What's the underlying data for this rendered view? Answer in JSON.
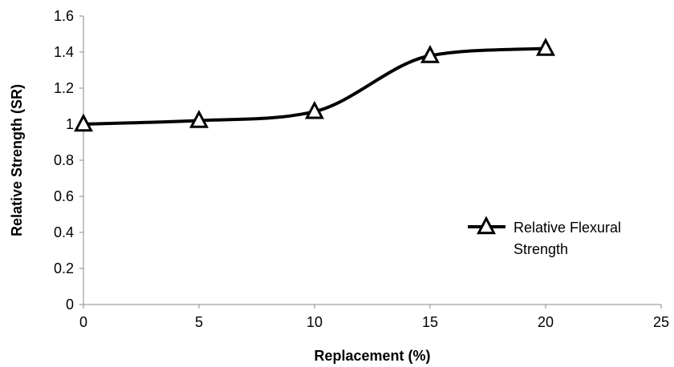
{
  "chart_data": {
    "type": "line",
    "title": "",
    "xlabel": "Replacement (%)",
    "ylabel": "Relative Strength (SR)",
    "xlim": [
      0,
      25
    ],
    "ylim": [
      0,
      1.6
    ],
    "xticks": [
      0,
      5,
      10,
      15,
      20,
      25
    ],
    "yticks": [
      0,
      0.2,
      0.4,
      0.6,
      0.8,
      1,
      1.2,
      1.4,
      1.6
    ],
    "xtick_labels": [
      "0",
      "5",
      "10",
      "15",
      "20",
      "25"
    ],
    "ytick_labels": [
      "0",
      "0.2",
      "0.4",
      "0.6",
      "0.8",
      "1",
      "1.2",
      "1.4",
      "1.6"
    ],
    "grid": false,
    "legend_position": "right",
    "smooth": true,
    "series": [
      {
        "name": "Relative Flexural Strength",
        "legend_lines": [
          "Relative Flexural",
          "Strength"
        ],
        "marker": "triangle",
        "color": "#000000",
        "x": [
          0,
          5,
          10,
          15,
          20
        ],
        "y": [
          1.0,
          1.02,
          1.07,
          1.38,
          1.42
        ]
      }
    ]
  }
}
